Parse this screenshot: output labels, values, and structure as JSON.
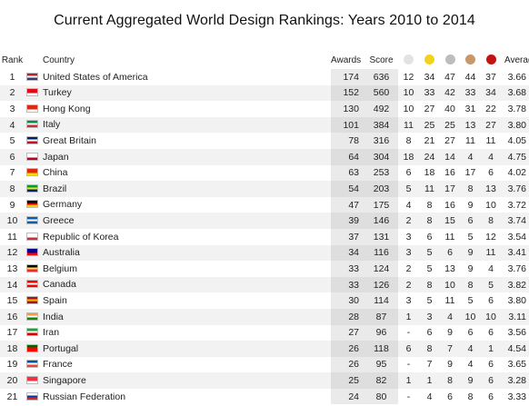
{
  "title": "Current Aggregated World Design Rankings: Years 2010 to 2014",
  "columns": {
    "rank": "Rank",
    "country": "Country",
    "awards": "Awards",
    "score": "Score",
    "average": "Average"
  },
  "medals": [
    {
      "name": "platinum-dot",
      "color": "#e3e3e3"
    },
    {
      "name": "gold-dot",
      "color": "#f2d21b"
    },
    {
      "name": "silver-dot",
      "color": "#bdbdbd"
    },
    {
      "name": "bronze-dot",
      "color": "#c8976b"
    },
    {
      "name": "red-dot",
      "color": "#c41313"
    }
  ],
  "rows": [
    {
      "rank": "1",
      "flag_colors": [
        "#b22234",
        "#ffffff",
        "#3c3b6e"
      ],
      "country": "United States of America",
      "awards": "174",
      "score": "636",
      "m1": "12",
      "m2": "34",
      "m3": "47",
      "m4": "44",
      "m5": "37",
      "avg": "3.66"
    },
    {
      "rank": "2",
      "flag_colors": [
        "#e30a17",
        "#e30a17",
        "#ffffff"
      ],
      "country": "Turkey",
      "awards": "152",
      "score": "560",
      "m1": "10",
      "m2": "33",
      "m3": "42",
      "m4": "33",
      "m5": "34",
      "avg": "3.68"
    },
    {
      "rank": "3",
      "flag_colors": [
        "#de2910",
        "#de2910",
        "#ffffff"
      ],
      "country": "Hong Kong",
      "awards": "130",
      "score": "492",
      "m1": "10",
      "m2": "27",
      "m3": "40",
      "m4": "31",
      "m5": "22",
      "avg": "3.78"
    },
    {
      "rank": "4",
      "flag_colors": [
        "#009246",
        "#ffffff",
        "#ce2b37"
      ],
      "country": "Italy",
      "awards": "101",
      "score": "384",
      "m1": "11",
      "m2": "25",
      "m3": "25",
      "m4": "13",
      "m5": "27",
      "avg": "3.80"
    },
    {
      "rank": "5",
      "flag_colors": [
        "#012169",
        "#ffffff",
        "#c8102e"
      ],
      "country": "Great Britain",
      "awards": "78",
      "score": "316",
      "m1": "8",
      "m2": "21",
      "m3": "27",
      "m4": "11",
      "m5": "11",
      "avg": "4.05"
    },
    {
      "rank": "6",
      "flag_colors": [
        "#ffffff",
        "#ffffff",
        "#bc002d"
      ],
      "country": "Japan",
      "awards": "64",
      "score": "304",
      "m1": "18",
      "m2": "24",
      "m3": "14",
      "m4": "4",
      "m5": "4",
      "avg": "4.75"
    },
    {
      "rank": "7",
      "flag_colors": [
        "#de2910",
        "#de2910",
        "#ffde00"
      ],
      "country": "China",
      "awards": "63",
      "score": "253",
      "m1": "6",
      "m2": "18",
      "m3": "16",
      "m4": "17",
      "m5": "6",
      "avg": "4.02"
    },
    {
      "rank": "8",
      "flag_colors": [
        "#009c3b",
        "#ffdf00",
        "#002776"
      ],
      "country": "Brazil",
      "awards": "54",
      "score": "203",
      "m1": "5",
      "m2": "11",
      "m3": "17",
      "m4": "8",
      "m5": "13",
      "avg": "3.76"
    },
    {
      "rank": "9",
      "flag_colors": [
        "#000000",
        "#dd0000",
        "#ffce00"
      ],
      "country": "Germany",
      "awards": "47",
      "score": "175",
      "m1": "4",
      "m2": "8",
      "m3": "16",
      "m4": "9",
      "m5": "10",
      "avg": "3.72"
    },
    {
      "rank": "10",
      "flag_colors": [
        "#0d5eaf",
        "#ffffff",
        "#0d5eaf"
      ],
      "country": "Greece",
      "awards": "39",
      "score": "146",
      "m1": "2",
      "m2": "8",
      "m3": "15",
      "m4": "6",
      "m5": "8",
      "avg": "3.74"
    },
    {
      "rank": "11",
      "flag_colors": [
        "#ffffff",
        "#ffffff",
        "#cd2e3a"
      ],
      "country": "Republic of Korea",
      "awards": "37",
      "score": "131",
      "m1": "3",
      "m2": "6",
      "m3": "11",
      "m4": "5",
      "m5": "12",
      "avg": "3.54"
    },
    {
      "rank": "12",
      "flag_colors": [
        "#00008b",
        "#00008b",
        "#ff0000"
      ],
      "country": "Australia",
      "awards": "34",
      "score": "116",
      "m1": "3",
      "m2": "5",
      "m3": "6",
      "m4": "9",
      "m5": "11",
      "avg": "3.41"
    },
    {
      "rank": "13",
      "flag_colors": [
        "#000000",
        "#fae042",
        "#ed2939"
      ],
      "country": "Belgium",
      "awards": "33",
      "score": "124",
      "m1": "2",
      "m2": "5",
      "m3": "13",
      "m4": "9",
      "m5": "4",
      "avg": "3.76"
    },
    {
      "rank": "14",
      "flag_colors": [
        "#ff0000",
        "#ffffff",
        "#ff0000"
      ],
      "country": "Canada",
      "awards": "33",
      "score": "126",
      "m1": "2",
      "m2": "8",
      "m3": "10",
      "m4": "8",
      "m5": "5",
      "avg": "3.82"
    },
    {
      "rank": "15",
      "flag_colors": [
        "#aa151b",
        "#f1bf00",
        "#aa151b"
      ],
      "country": "Spain",
      "awards": "30",
      "score": "114",
      "m1": "3",
      "m2": "5",
      "m3": "11",
      "m4": "5",
      "m5": "6",
      "avg": "3.80"
    },
    {
      "rank": "16",
      "flag_colors": [
        "#ff9933",
        "#ffffff",
        "#138808"
      ],
      "country": "India",
      "awards": "28",
      "score": "87",
      "m1": "1",
      "m2": "3",
      "m3": "4",
      "m4": "10",
      "m5": "10",
      "avg": "3.11"
    },
    {
      "rank": "17",
      "flag_colors": [
        "#239f40",
        "#ffffff",
        "#da0000"
      ],
      "country": "Iran",
      "awards": "27",
      "score": "96",
      "m1": "-",
      "m2": "6",
      "m3": "9",
      "m4": "6",
      "m5": "6",
      "avg": "3.56"
    },
    {
      "rank": "18",
      "flag_colors": [
        "#006600",
        "#ff0000",
        "#ff0000"
      ],
      "country": "Portugal",
      "awards": "26",
      "score": "118",
      "m1": "6",
      "m2": "8",
      "m3": "7",
      "m4": "4",
      "m5": "1",
      "avg": "4.54"
    },
    {
      "rank": "19",
      "flag_colors": [
        "#0055a4",
        "#ffffff",
        "#ef4135"
      ],
      "country": "France",
      "awards": "26",
      "score": "95",
      "m1": "-",
      "m2": "7",
      "m3": "9",
      "m4": "4",
      "m5": "6",
      "avg": "3.65"
    },
    {
      "rank": "20",
      "flag_colors": [
        "#ef3340",
        "#ef3340",
        "#ffffff"
      ],
      "country": "Singapore",
      "awards": "25",
      "score": "82",
      "m1": "1",
      "m2": "1",
      "m3": "8",
      "m4": "9",
      "m5": "6",
      "avg": "3.28"
    },
    {
      "rank": "21",
      "flag_colors": [
        "#ffffff",
        "#0039a6",
        "#d52b1e"
      ],
      "country": "Russian Federation",
      "awards": "24",
      "score": "80",
      "m1": "-",
      "m2": "4",
      "m3": "6",
      "m4": "8",
      "m5": "6",
      "avg": "3.33"
    }
  ]
}
